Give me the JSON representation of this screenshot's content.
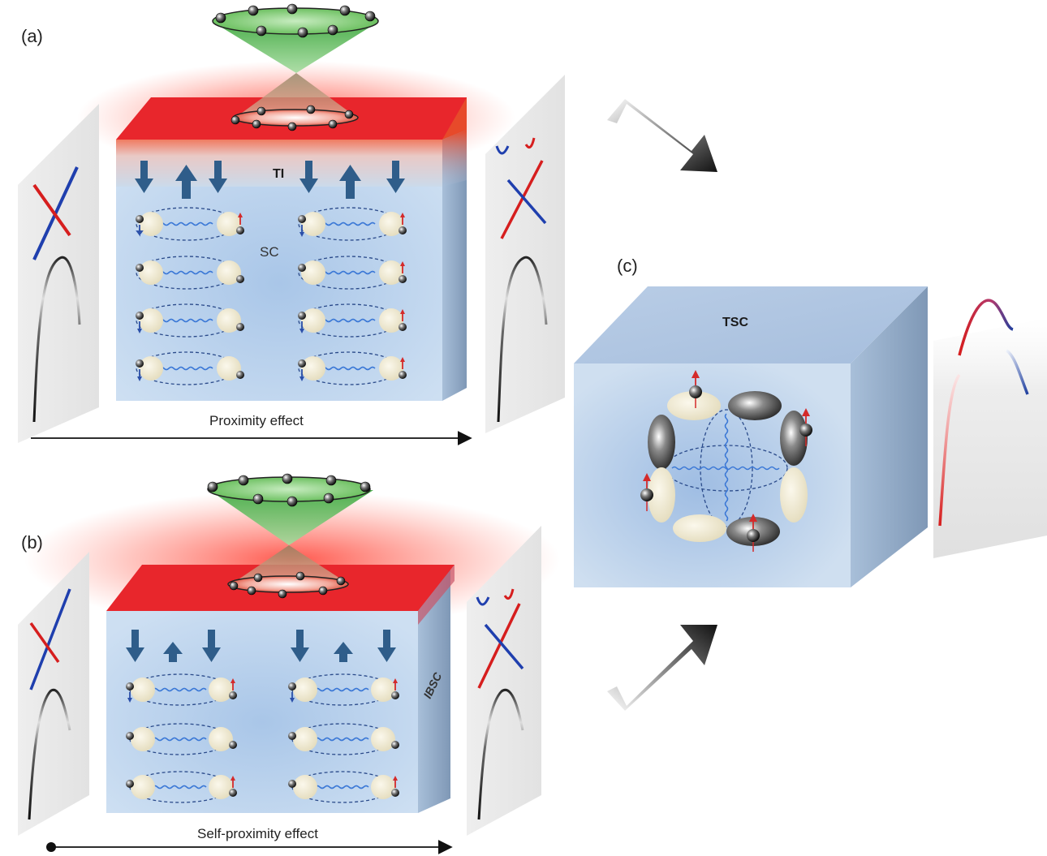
{
  "panels": {
    "a": {
      "label": "(a)",
      "top_layer_label": "TI",
      "bulk_label": "SC",
      "caption": "Proximity effect"
    },
    "b": {
      "label": "(b)",
      "side_label": "IBSC",
      "caption": "Self-proximity effect"
    },
    "c": {
      "label": "(c)",
      "top_label": "TSC"
    }
  },
  "colors": {
    "top_layer": "#e8262c",
    "bulk": "#bcd3ec",
    "side": "#8ea8c6",
    "spin_down": "#2b4fa8",
    "spin_up": "#d42a2a",
    "big_arrow": "#2f5d8a",
    "cone": "#4caf3a"
  },
  "icons": [
    "block-arrow-icon",
    "spin-arrow-icon",
    "cooper-pair-icon",
    "electron-icon",
    "dirac-cone-icon"
  ]
}
